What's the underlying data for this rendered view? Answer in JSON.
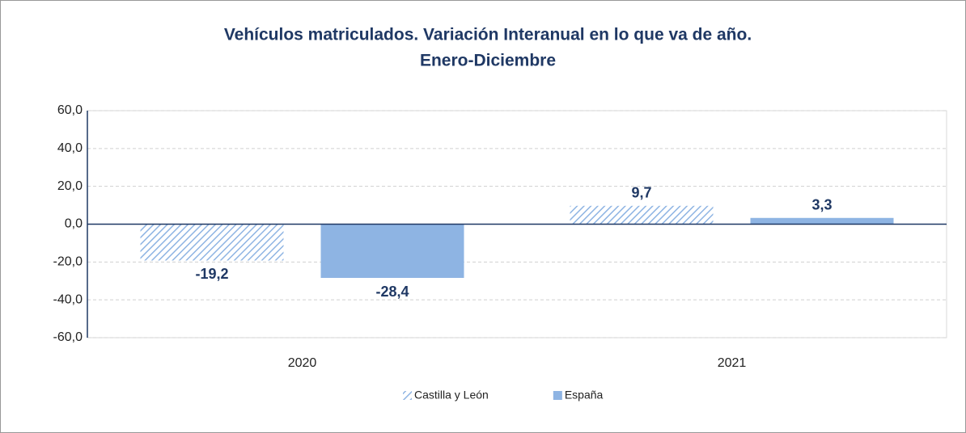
{
  "chart_data": {
    "type": "bar",
    "title": "Vehículos matriculados. Variación Interanual en lo que va de año.",
    "subtitle": "Enero-Diciembre",
    "categories": [
      "2020",
      "2021"
    ],
    "series": [
      {
        "name": "Castilla y León",
        "color": "#8eb4e3",
        "hatch": true,
        "values": [
          -19.2,
          9.7
        ],
        "value_labels": [
          "-19,2",
          "9,7"
        ]
      },
      {
        "name": "España",
        "color": "#8eb4e3",
        "hatch": false,
        "values": [
          -28.4,
          3.3
        ],
        "value_labels": [
          "-28,4",
          "3,3"
        ]
      }
    ],
    "ylim": [
      -60,
      60
    ],
    "yticks": [
      {
        "value": -60,
        "label": "-60,0"
      },
      {
        "value": -40,
        "label": "-40,0"
      },
      {
        "value": -20,
        "label": "-20,0"
      },
      {
        "value": 0,
        "label": "0,0"
      },
      {
        "value": 20,
        "label": "20,0"
      },
      {
        "value": 40,
        "label": "40,0"
      },
      {
        "value": 60,
        "label": "60,0"
      }
    ],
    "grid": true,
    "legend": "bottom"
  }
}
